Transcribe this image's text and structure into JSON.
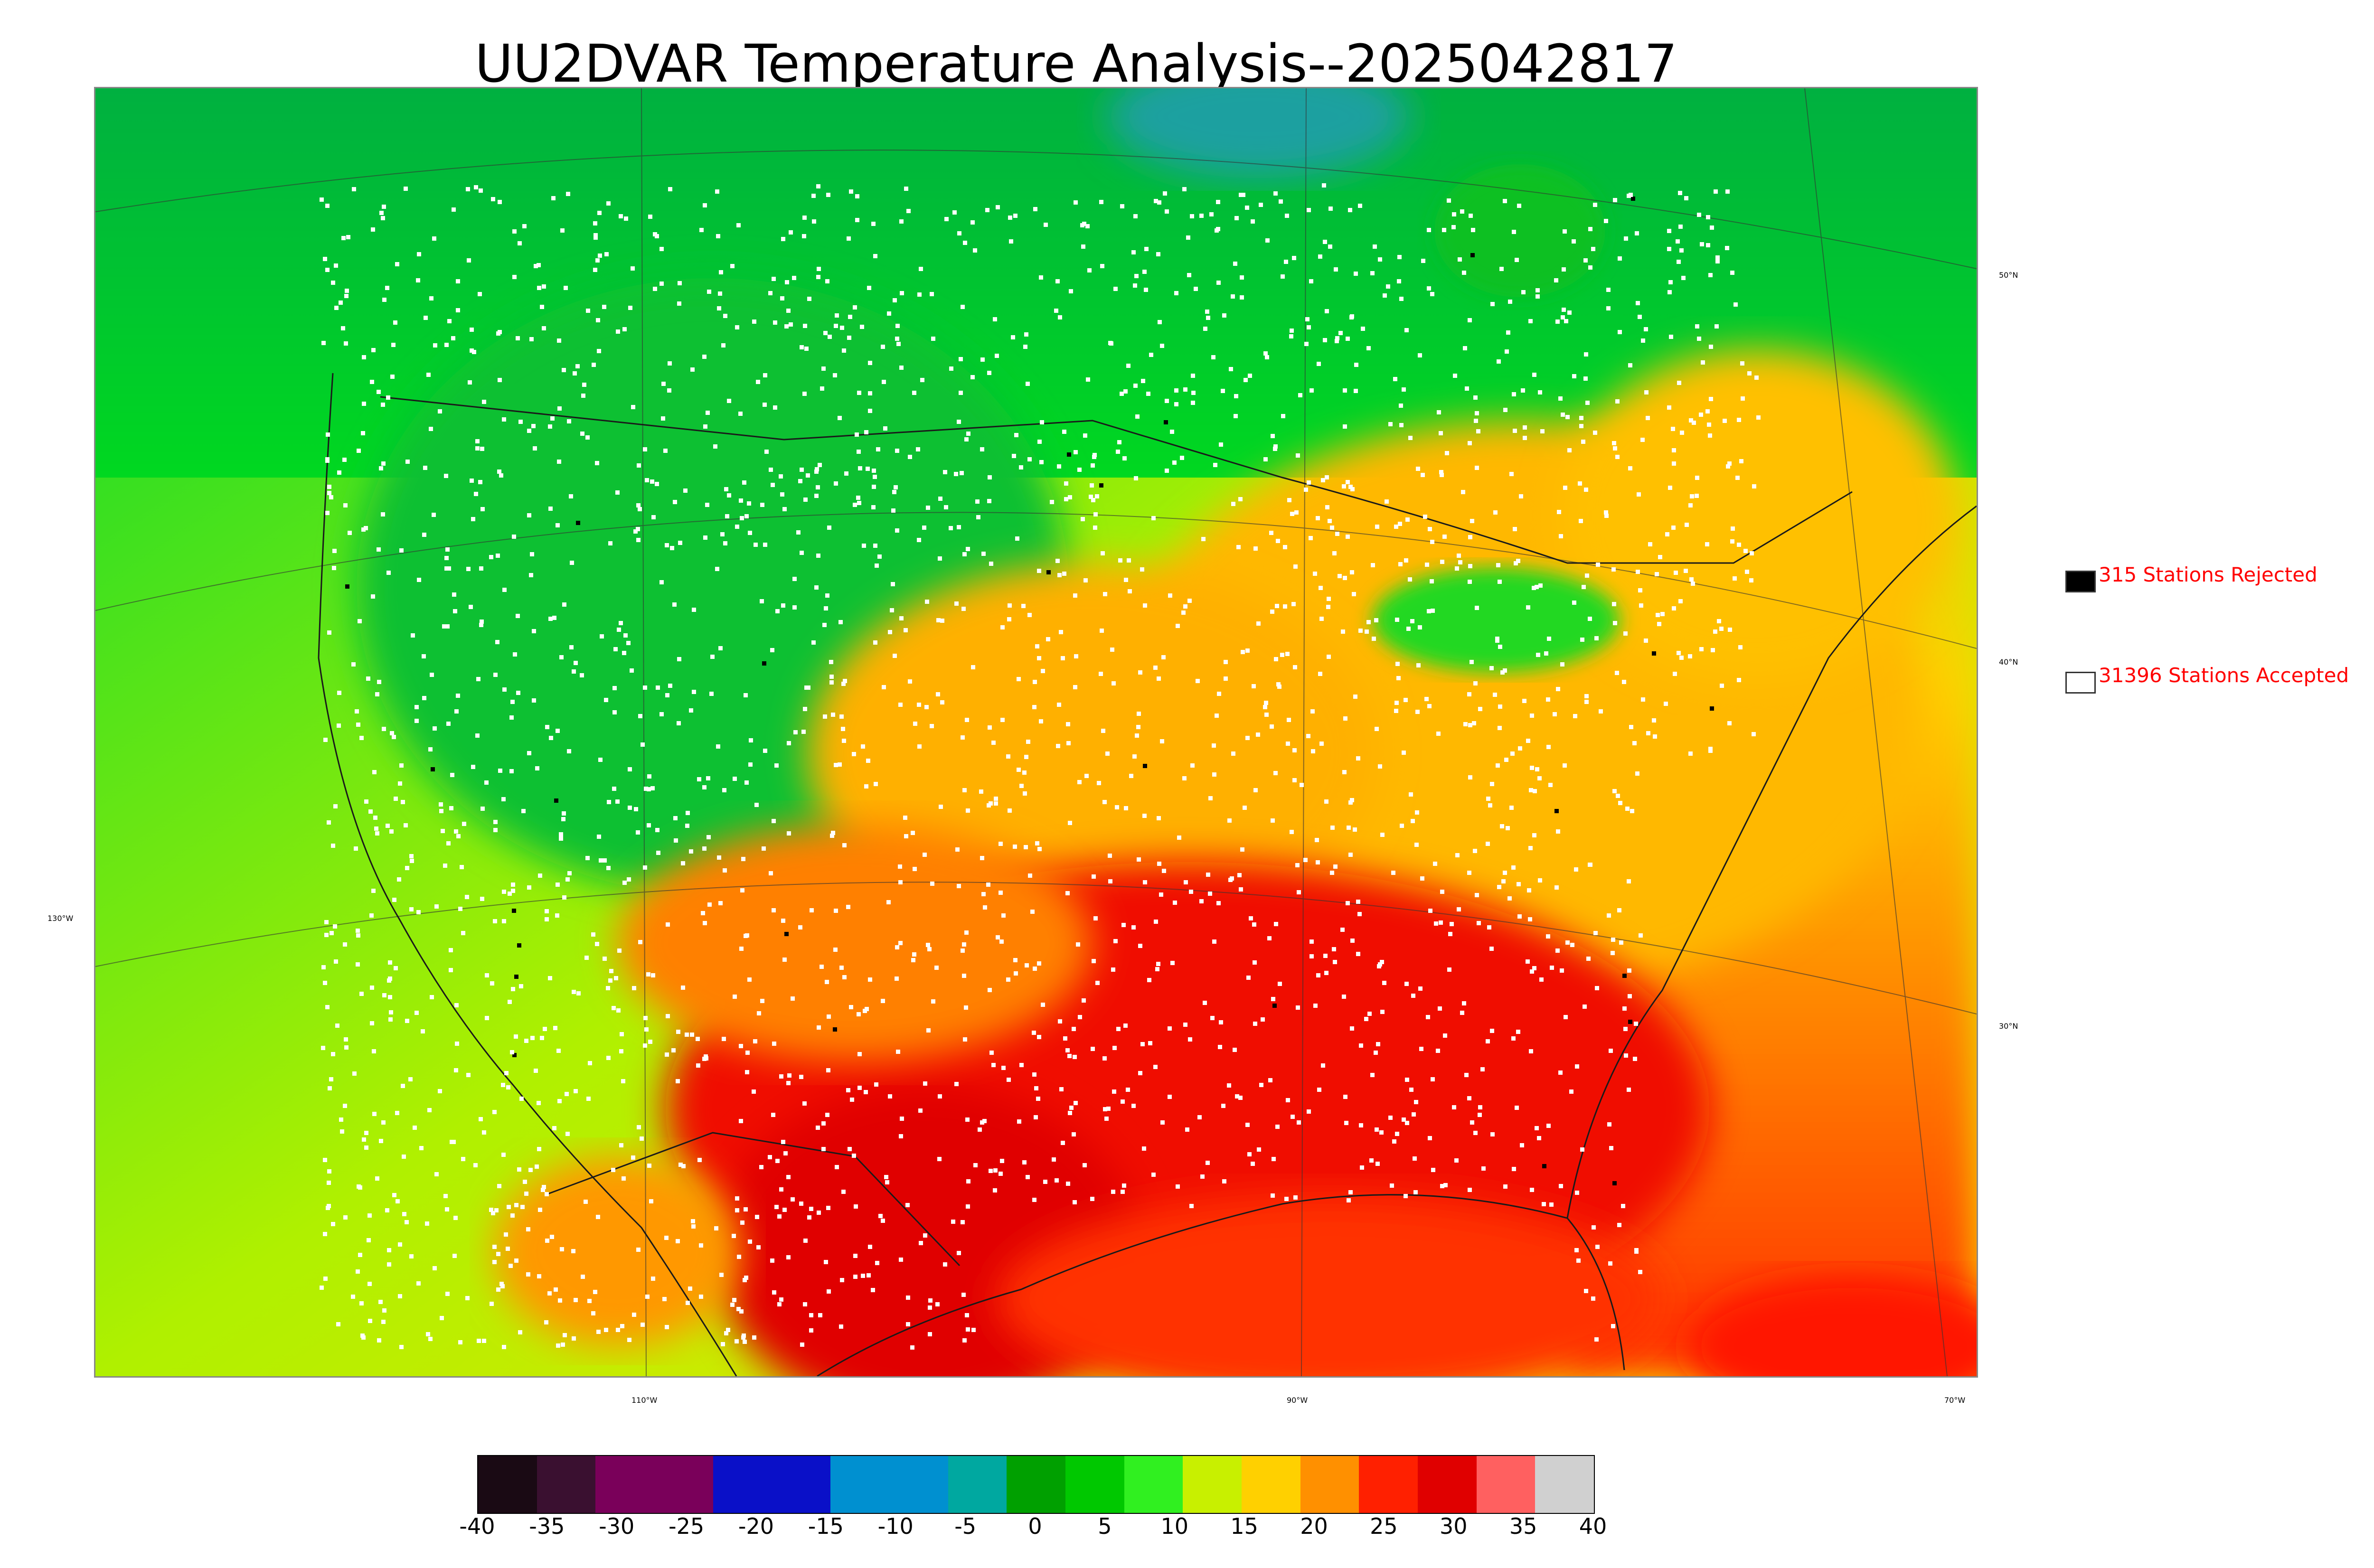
{
  "title": "UU2DVAR Temperature Analysis--2025042817",
  "longitude_labels": [
    "110°W",
    "90°W",
    "70°W"
  ],
  "latitude_labels_right": [
    "50°N",
    "40°N",
    "30°N"
  ],
  "latitude_labels_left": [
    "130°W"
  ],
  "legend": {
    "rejected": {
      "label": "315 Stations Rejected",
      "color": "#000000"
    },
    "accepted": {
      "label": "31396 Stations Accepted",
      "color": "#ffffff"
    }
  },
  "colorbar": {
    "ticks": [
      "-40",
      "-35",
      "-30",
      "-25",
      "-20",
      "-15",
      "-10",
      "-5",
      "0",
      "5",
      "10",
      "15",
      "20",
      "25",
      "30",
      "35",
      "40"
    ],
    "colors": [
      "#1a0a14",
      "#3a1030",
      "#7a005a",
      "#7a005a",
      "#0a10c8",
      "#0a10c8",
      "#0090d0",
      "#0090d0",
      "#00a8a0",
      "#00a000",
      "#00c800",
      "#30f020",
      "#c8f000",
      "#ffd000",
      "#ff9000",
      "#ff2000",
      "#e00000",
      "#ff6060",
      "#d0d0d0"
    ]
  },
  "map": {
    "land_colors": {
      "cold_north": "#20a020",
      "cool": "#00d020",
      "mild": "#a0f000",
      "warm": "#ffc800",
      "hot": "#ff5000",
      "very_hot": "#e60000",
      "ocean_pacific": "#c8f000",
      "ocean_atlantic": "#ffb000",
      "gulf": "#ff3000",
      "arctic_teal": "#1aa0a0"
    },
    "station_color_accepted": "#ffffff",
    "station_color_rejected": "#000000"
  }
}
